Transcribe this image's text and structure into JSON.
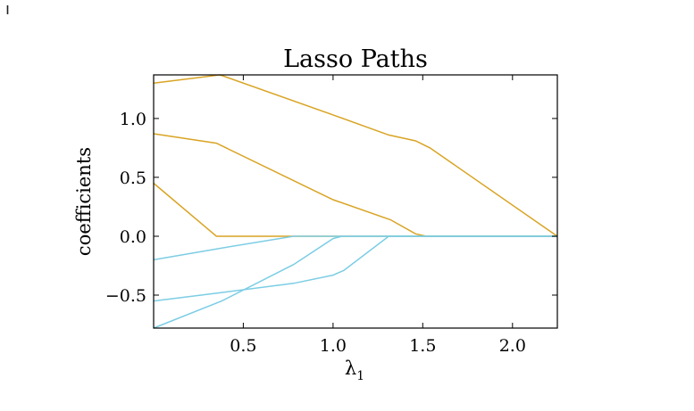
{
  "corner_mark": "ı",
  "chart_data": {
    "type": "line",
    "title": "Lasso Paths",
    "xlabel": "λ",
    "xlabel_sub": "1",
    "ylabel": "coefficients",
    "xlim": [
      0,
      2.25
    ],
    "ylim": [
      -0.78,
      1.37
    ],
    "xticks": [
      0.5,
      1.0,
      1.5,
      2.0
    ],
    "xtick_labels": [
      "0.5",
      "1.0",
      "1.5",
      "2.0"
    ],
    "yticks": [
      -0.5,
      0.0,
      0.5,
      1.0
    ],
    "ytick_labels": [
      "−0.5",
      "0.0",
      "0.5",
      "1.0"
    ],
    "grid": false,
    "colors": {
      "positive": "#d9a424",
      "negative": "#7ccde4"
    },
    "series": [
      {
        "color_key": "positive",
        "points": [
          [
            0,
            1.3
          ],
          [
            0.37,
            1.37
          ],
          [
            1.0,
            1.03
          ],
          [
            1.31,
            0.86
          ],
          [
            1.46,
            0.81
          ],
          [
            1.54,
            0.75
          ],
          [
            2.25,
            0.0
          ]
        ]
      },
      {
        "color_key": "positive",
        "points": [
          [
            0,
            0.87
          ],
          [
            0.35,
            0.79
          ],
          [
            1.0,
            0.31
          ],
          [
            1.32,
            0.14
          ],
          [
            1.46,
            0.02
          ],
          [
            1.52,
            0.0
          ],
          [
            2.25,
            0.0
          ]
        ]
      },
      {
        "color_key": "positive",
        "points": [
          [
            0,
            0.45
          ],
          [
            0.35,
            0.0
          ],
          [
            2.25,
            0.0
          ]
        ]
      },
      {
        "color_key": "negative",
        "points": [
          [
            0,
            -0.2
          ],
          [
            0.38,
            -0.1
          ],
          [
            0.78,
            0.0
          ],
          [
            2.25,
            0.0
          ]
        ]
      },
      {
        "color_key": "negative",
        "points": [
          [
            0,
            -0.78
          ],
          [
            0.38,
            -0.55
          ],
          [
            0.78,
            -0.24
          ],
          [
            1.0,
            -0.02
          ],
          [
            1.05,
            0.0
          ],
          [
            2.25,
            0.0
          ]
        ]
      },
      {
        "color_key": "negative",
        "points": [
          [
            0,
            -0.55
          ],
          [
            0.37,
            -0.48
          ],
          [
            0.78,
            -0.4
          ],
          [
            1.0,
            -0.33
          ],
          [
            1.06,
            -0.29
          ],
          [
            1.31,
            0.0
          ],
          [
            2.25,
            0.0
          ]
        ]
      }
    ]
  }
}
